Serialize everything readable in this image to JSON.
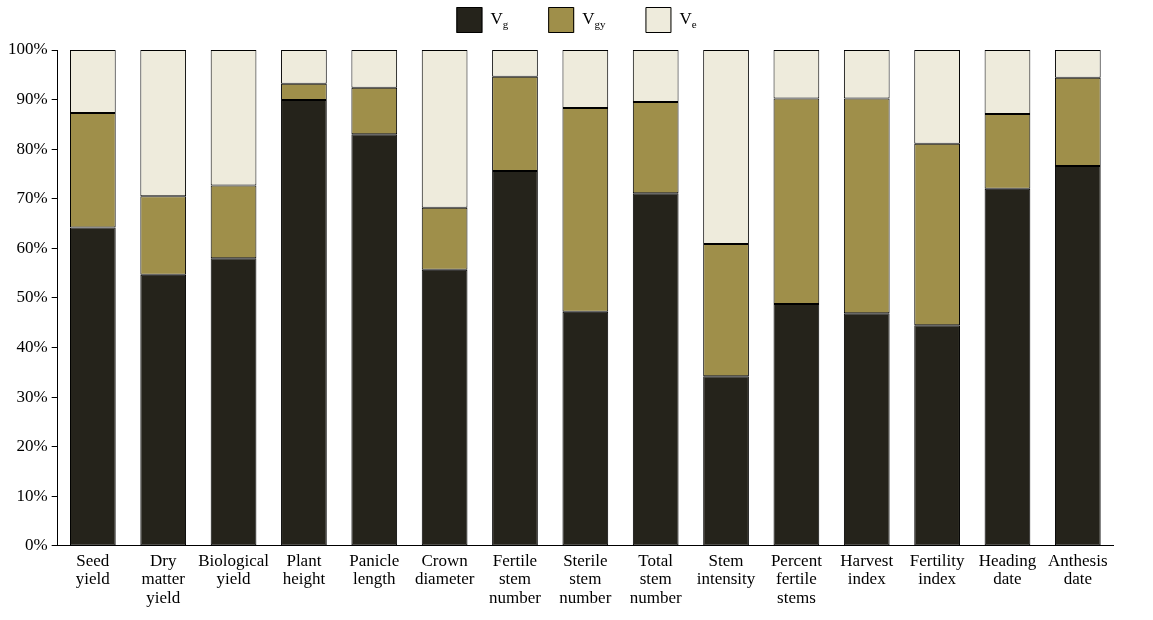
{
  "chart_data": {
    "type": "bar",
    "stacked": true,
    "legend": "top",
    "grid": false,
    "categories": [
      "Seed yield",
      "Dry matter yield",
      "Biological yield",
      "Plant height",
      "Panicle length",
      "Crown diameter",
      "Fertile stem number",
      "Sterile stem number",
      "Total stem number",
      "Stem intensity",
      "Percent fertile stems",
      "Harvest index",
      "Fertility index",
      "Heading date",
      "Anthesis date"
    ],
    "series": [
      {
        "name": "V$_{g}$",
        "color": "#25231b",
        "values": [
          64.2,
          54.7,
          58.0,
          89.9,
          83.0,
          55.7,
          75.6,
          47.2,
          71.1,
          34.2,
          48.8,
          46.9,
          44.5,
          72.0,
          76.6
        ]
      },
      {
        "name": "V$_{gy}$",
        "color": "#9f8f4a",
        "values": [
          23.1,
          15.8,
          14.7,
          3.3,
          9.4,
          12.5,
          19.0,
          41.1,
          18.4,
          26.7,
          41.4,
          43.3,
          36.6,
          15.1,
          17.8
        ]
      },
      {
        "name": "V$_{e}$",
        "color": "#eeebdc",
        "values": [
          12.7,
          29.5,
          27.3,
          6.8,
          7.6,
          31.8,
          5.4,
          11.7,
          10.5,
          39.1,
          9.8,
          9.8,
          18.9,
          12.9,
          5.6
        ]
      }
    ],
    "ylim": [
      0,
      100
    ],
    "yticks": [
      {
        "value": 0,
        "label": "0%"
      },
      {
        "value": 10,
        "label": "10%"
      },
      {
        "value": 20,
        "label": "20%"
      },
      {
        "value": 30,
        "label": "30%"
      },
      {
        "value": 40,
        "label": "40%"
      },
      {
        "value": 50,
        "label": "50%"
      },
      {
        "value": 60,
        "label": "60%"
      },
      {
        "value": 70,
        "label": "70%"
      },
      {
        "value": 80,
        "label": "80%"
      },
      {
        "value": 90,
        "label": "90%"
      },
      {
        "value": 100,
        "label": "100%"
      }
    ]
  }
}
